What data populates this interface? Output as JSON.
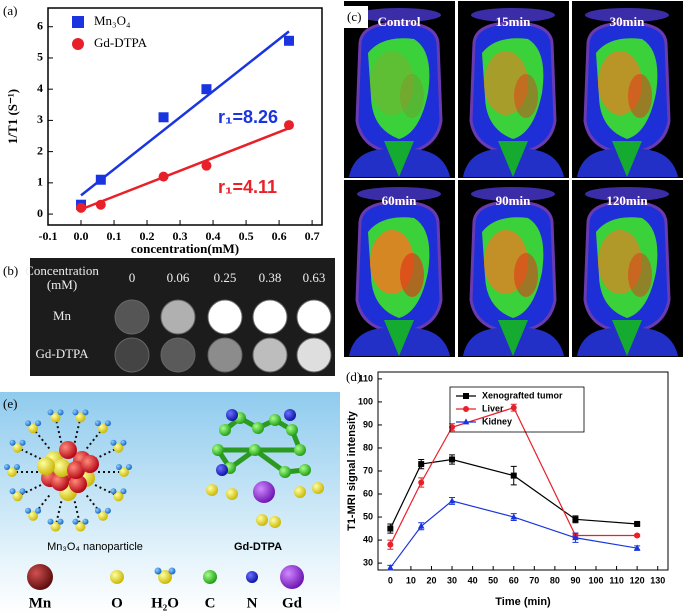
{
  "chart_data": [
    {
      "type": "scatter",
      "x_label": "concentration(mM)",
      "y_label": "1/T1 (S⁻¹)",
      "xlim": [
        -0.1,
        0.73
      ],
      "ylim": [
        -0.35,
        6.6
      ],
      "xticks": [
        -0.1,
        {
          "value": 0,
          "label": "0.0"
        },
        0.1,
        0.2,
        0.3,
        0.4,
        0.5,
        0.6,
        0.7
      ],
      "yticks": [
        0,
        1,
        2,
        3,
        4,
        5,
        6
      ],
      "legend": "upper left",
      "series": [
        {
          "name": "Mn₃O₄",
          "color": "#1a35e0",
          "marker": "square",
          "x": [
            0,
            0.06,
            0.25,
            0.38,
            0.63
          ],
          "values": [
            0.3,
            1.1,
            3.1,
            4.0,
            5.55
          ],
          "fit": {
            "x": [
              0,
              0.63
            ],
            "values": [
              0.6,
              5.85
            ]
          },
          "annotation": "r₁=8.26"
        },
        {
          "name": "Gd-DTPA",
          "color": "#e8202a",
          "marker": "circle",
          "x": [
            0,
            0.06,
            0.25,
            0.38,
            0.63
          ],
          "values": [
            0.2,
            0.3,
            1.2,
            1.55,
            2.85
          ],
          "fit": {
            "x": [
              0,
              0.63
            ],
            "values": [
              0.15,
              2.75
            ]
          },
          "annotation": "r₁=4.11"
        }
      ]
    },
    {
      "type": "line",
      "x_label": "Time (min)",
      "y_label": "T1-MRI signal intensity",
      "x": [
        0,
        15,
        30,
        60,
        90,
        120
      ],
      "xlim": [
        -6,
        135
      ],
      "xticks": [
        0,
        10,
        20,
        30,
        40,
        50,
        60,
        70,
        80,
        90,
        100,
        110,
        120,
        130
      ],
      "ylim": [
        27,
        113
      ],
      "yticks": [
        30,
        40,
        50,
        60,
        70,
        80,
        90,
        100,
        110
      ],
      "legend": "upper right",
      "series": [
        {
          "name": "Xenografted tumor",
          "color": "#000000",
          "marker": "square",
          "values": [
            45,
            73,
            75,
            68,
            49,
            47
          ],
          "errors": [
            2,
            2,
            2,
            4,
            1.5,
            0.5
          ]
        },
        {
          "name": "Liver",
          "color": "#e8202a",
          "marker": "circle",
          "values": [
            38,
            65,
            89,
            97.5,
            42,
            42
          ],
          "errors": [
            2,
            2,
            1.5,
            1.5,
            1,
            0.5
          ]
        },
        {
          "name": "Kidney",
          "color": "#1a35e0",
          "marker": "triangle",
          "values": [
            28,
            46,
            57,
            50,
            41,
            36.5
          ],
          "errors": [
            1,
            1.5,
            1.5,
            1.5,
            2,
            1
          ]
        }
      ]
    }
  ],
  "panel_labels": [
    "(a)",
    "(b)",
    "(c)",
    "(d)",
    "(e)"
  ],
  "phantom": {
    "header": [
      "Concentration",
      "(mM)"
    ],
    "concentrations": [
      "0",
      "0.06",
      "0.25",
      "0.38",
      "0.63"
    ],
    "rows": [
      "Mn",
      "Gd-DTPA"
    ]
  },
  "mri_frames": [
    "Control",
    "15min",
    "30min",
    "60min",
    "90min",
    "120min"
  ],
  "structure": {
    "labels": [
      "Mn₃O₄ nanoparticle",
      "Gd-DTPA"
    ],
    "legend": [
      "Mn",
      "O",
      "H₂O",
      "C",
      "N",
      "Gd"
    ]
  }
}
